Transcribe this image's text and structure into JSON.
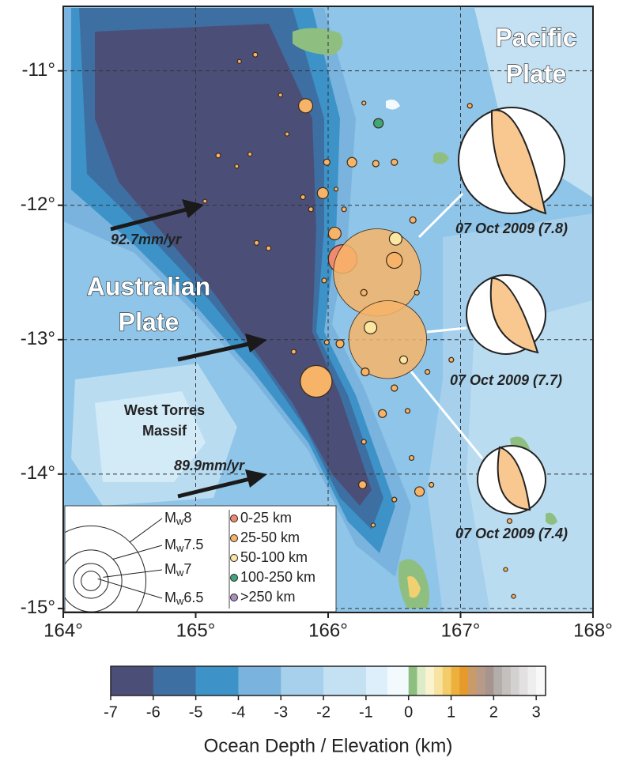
{
  "chart_data": {
    "type": "map",
    "xlim": [
      164,
      168
    ],
    "ylim": [
      -15.03,
      -10.52
    ],
    "xticks": [
      {
        "value": 164,
        "label": "164°"
      },
      {
        "value": 165,
        "label": "165°"
      },
      {
        "value": 166,
        "label": "166°"
      },
      {
        "value": 167,
        "label": "167°"
      },
      {
        "value": 168,
        "label": "168°"
      }
    ],
    "yticks": [
      {
        "value": -11,
        "label": "-11°"
      },
      {
        "value": -12,
        "label": "-12°"
      },
      {
        "value": -13,
        "label": "-13°"
      },
      {
        "value": -14,
        "label": "-14°"
      },
      {
        "value": -15,
        "label": "-15°"
      }
    ],
    "grid": true,
    "annotations": {
      "pacific_plate": [
        "Pacific",
        "Plate"
      ],
      "australian_plate": [
        "Australian",
        "Plate"
      ],
      "massif": [
        "West Torres",
        "Massif"
      ],
      "rates": [
        "92.7mm/yr",
        "89.9mm/yr"
      ],
      "mechanisms": [
        "07 Oct 2009 (7.8)",
        "07 Oct 2009 (7.7)",
        "07 Oct 2009 (7.4)"
      ]
    },
    "magnitude_symbol": "M",
    "magnitude_subscript": "w",
    "magnitude_legend": [
      8,
      7.5,
      7,
      6.5
    ],
    "series": [
      {
        "name": "0-25 km",
        "color": "#ee8a72",
        "lon": [
          166.11
        ],
        "lat": [
          -12.4
        ],
        "mag": [
          6.83
        ]
      },
      {
        "name": "25-50 km",
        "color": "#f7b468",
        "lon": [
          165.45,
          165.33,
          165.83,
          165.69,
          165.41,
          165.17,
          166.18,
          165.99,
          166.36,
          166.5,
          165.96,
          165.81,
          165.87,
          166.12,
          166.05,
          166.64,
          166.37,
          166.5,
          165.46,
          165.55,
          165.97,
          166.27,
          166.45,
          165.91,
          166.09,
          165.99,
          165.74,
          166.28,
          166.5,
          166.41,
          166.6,
          166.75,
          166.27,
          166.63,
          166.26,
          166.69,
          166.78,
          166.5,
          166.34,
          167.37,
          167.34,
          167.4,
          167.07,
          166.93,
          165.07,
          165.31,
          165.64,
          166.27,
          166.67,
          166.06
        ],
        "lat": [
          -10.88,
          -10.93,
          -11.26,
          -11.47,
          -11.62,
          -11.63,
          -11.68,
          -11.68,
          -11.69,
          -11.68,
          -11.91,
          -11.94,
          -12.03,
          -12.03,
          -12.21,
          -12.11,
          -12.5,
          -12.41,
          -12.28,
          -12.32,
          -12.56,
          -12.65,
          -13.0,
          -13.31,
          -13.03,
          -13.02,
          -13.09,
          -13.24,
          -13.36,
          -13.55,
          -13.53,
          -13.24,
          -13.76,
          -13.88,
          -14.08,
          -14.13,
          -14.08,
          -14.19,
          -14.38,
          -14.35,
          -14.71,
          -14.91,
          -11.26,
          -13.15,
          -11.97,
          -11.71,
          -11.18,
          -11.24,
          -12.65,
          -11.88
        ],
        "mag": [
          5.27,
          5.11,
          6.22,
          5.11,
          5.11,
          5.27,
          5.87,
          5.52,
          5.52,
          5.52,
          6.0,
          5.27,
          5.27,
          5.27,
          6.12,
          5.52,
          7.8,
          6.32,
          5.27,
          5.27,
          5.27,
          5.52,
          7.7,
          6.92,
          5.71,
          5.27,
          5.27,
          5.71,
          5.52,
          5.71,
          5.27,
          5.27,
          5.27,
          5.27,
          5.71,
          5.87,
          5.27,
          5.27,
          5.11,
          5.27,
          5.11,
          5.11,
          5.27,
          5.27,
          5.11,
          5.11,
          5.11,
          5.11,
          5.27,
          5.11
        ]
      },
      {
        "name": "50-100 km",
        "color": "#fbe6a2",
        "lon": [
          166.51,
          166.32,
          166.57
        ],
        "lat": [
          -12.25,
          -12.91,
          -13.15
        ],
        "mag": [
          6.12,
          6.12,
          5.71
        ]
      },
      {
        "name": "100-250 km",
        "color": "#3fa67a",
        "lon": [
          166.38
        ],
        "lat": [
          -11.39
        ],
        "mag": [
          5.87
        ]
      },
      {
        "name": ">250 km",
        "color": "#a98fc0",
        "lon": [],
        "lat": [],
        "mag": []
      }
    ],
    "colorbar": {
      "title": "Ocean Depth / Elevation (km)",
      "lim": [
        -7,
        3.22
      ],
      "ticks": [
        -7,
        -6,
        -5,
        -4,
        -3,
        -2,
        -1,
        0,
        1,
        2,
        3
      ],
      "segments": [
        {
          "from": -7,
          "to": -6,
          "color": "#4b4f78"
        },
        {
          "from": -6,
          "to": -5,
          "color": "#3e6fa3"
        },
        {
          "from": -5,
          "to": -4,
          "color": "#3d93c8"
        },
        {
          "from": -4,
          "to": -3,
          "color": "#7ab4de"
        },
        {
          "from": -3,
          "to": -2,
          "color": "#a6d0ec"
        },
        {
          "from": -2,
          "to": -1,
          "color": "#c3e1f3"
        },
        {
          "from": -1,
          "to": -0.5,
          "color": "#dcefFa"
        },
        {
          "from": -0.5,
          "to": 0,
          "color": "#f3fafd"
        },
        {
          "from": 0,
          "to": 0.2,
          "color": "#8fbf80"
        },
        {
          "from": 0.2,
          "to": 0.4,
          "color": "#dcebc8"
        },
        {
          "from": 0.4,
          "to": 0.6,
          "color": "#fbf3cf"
        },
        {
          "from": 0.6,
          "to": 0.8,
          "color": "#f7e3a2"
        },
        {
          "from": 0.8,
          "to": 1.0,
          "color": "#f3cd6a"
        },
        {
          "from": 1.0,
          "to": 1.2,
          "color": "#eeb03c"
        },
        {
          "from": 1.2,
          "to": 1.4,
          "color": "#e69a2c"
        },
        {
          "from": 1.4,
          "to": 1.6,
          "color": "#c99a6a"
        },
        {
          "from": 1.6,
          "to": 1.8,
          "color": "#b79a88"
        },
        {
          "from": 1.8,
          "to": 2.0,
          "color": "#a8948e"
        },
        {
          "from": 2.0,
          "to": 2.2,
          "color": "#b3aeaa"
        },
        {
          "from": 2.2,
          "to": 2.4,
          "color": "#c3c0be"
        },
        {
          "from": 2.4,
          "to": 2.6,
          "color": "#d3d1d0"
        },
        {
          "from": 2.6,
          "to": 2.8,
          "color": "#e2e0e0"
        },
        {
          "from": 2.8,
          "to": 3.0,
          "color": "#efeeee"
        },
        {
          "from": 3.0,
          "to": 3.22,
          "color": "#f9f9f9"
        }
      ]
    }
  }
}
